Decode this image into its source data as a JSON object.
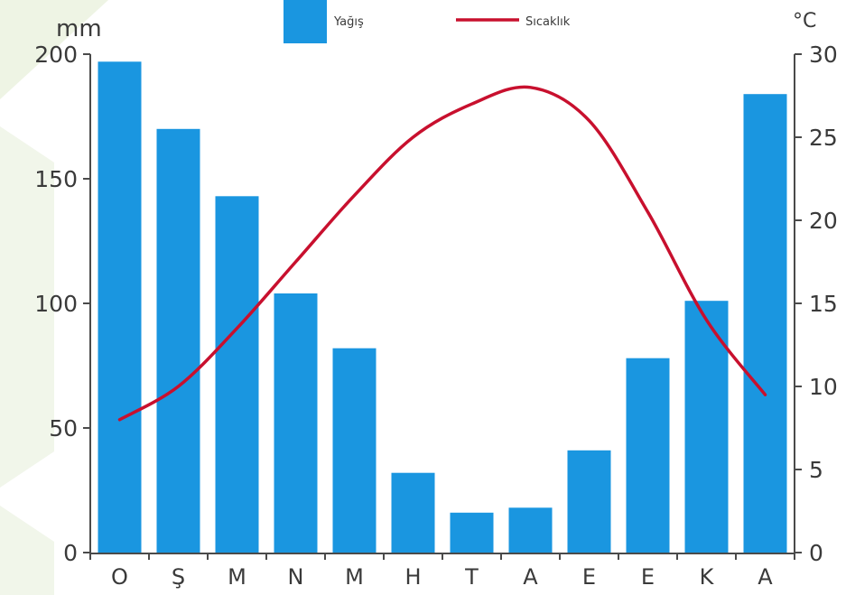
{
  "chart_data": {
    "type": "bar",
    "categories": [
      "O",
      "Ş",
      "M",
      "N",
      "M",
      "H",
      "T",
      "A",
      "E",
      "E",
      "K",
      "A"
    ],
    "series": [
      {
        "name": "Yağış",
        "type": "bar",
        "axis": "left",
        "color": "#1a96e0",
        "values": [
          197,
          170,
          143,
          104,
          82,
          32,
          16,
          18,
          41,
          78,
          101,
          184
        ]
      },
      {
        "name": "Sıcaklık",
        "type": "line",
        "axis": "right",
        "color": "#c8102e",
        "values": [
          8,
          10,
          13.5,
          17.5,
          21.5,
          25,
          27,
          28,
          26,
          20.5,
          14,
          9.5
        ]
      }
    ],
    "left_axis": {
      "unit": "mm",
      "ylim": [
        0,
        200
      ],
      "ticks": [
        "0",
        "50",
        "100",
        "150",
        "200"
      ]
    },
    "right_axis": {
      "unit": "°C",
      "ylim": [
        0,
        30
      ],
      "ticks": [
        "0",
        "5",
        "10",
        "15",
        "20",
        "25",
        "30"
      ]
    },
    "legend": {
      "position": "top"
    },
    "grid": false
  },
  "colors": {
    "bar": "#1a96e0",
    "line": "#c8102e",
    "axis": "#4a4a4a",
    "background_decor": "#edf3e2"
  }
}
